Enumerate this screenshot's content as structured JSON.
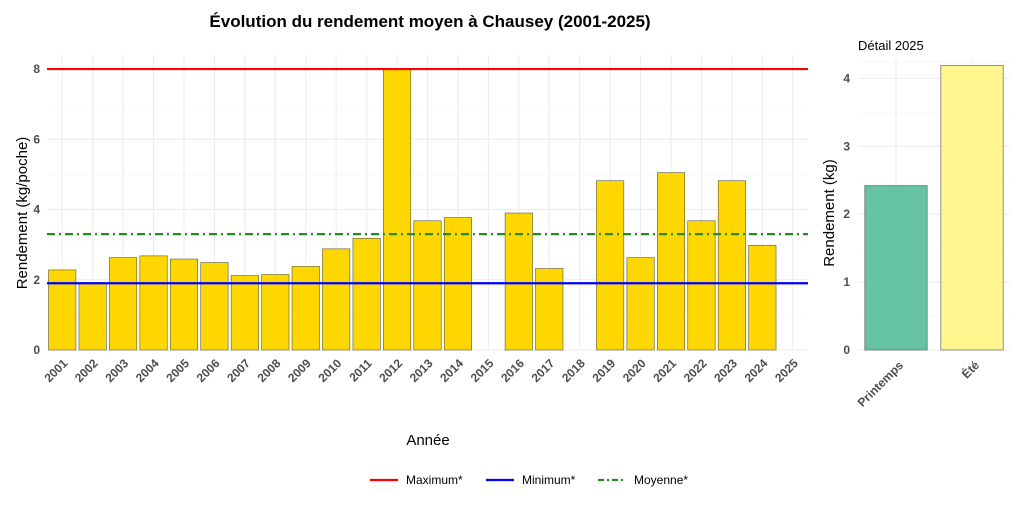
{
  "chart_data": [
    {
      "type": "bar",
      "title": "Évolution du rendement moyen à Chausey (2001-2025)",
      "xlabel": "Année",
      "ylabel": "Rendement (kg/poche)",
      "ylim": [
        0,
        8.4
      ],
      "yticks": [
        0,
        2,
        4,
        6,
        8
      ],
      "grid": true,
      "bar_color": "#FFD700",
      "categories": [
        "2001",
        "2002",
        "2003",
        "2004",
        "2005",
        "2006",
        "2007",
        "2008",
        "2009",
        "2010",
        "2011",
        "2012",
        "2013",
        "2014",
        "2015",
        "2016",
        "2017",
        "2018",
        "2019",
        "2020",
        "2021",
        "2022",
        "2023",
        "2024",
        "2025"
      ],
      "values": [
        2.28,
        1.9,
        2.63,
        2.68,
        2.59,
        2.49,
        2.12,
        2.15,
        2.38,
        2.88,
        3.18,
        8.0,
        3.68,
        3.77,
        null,
        3.9,
        2.32,
        null,
        4.82,
        2.63,
        5.05,
        3.68,
        4.82,
        2.98,
        null
      ],
      "reference_lines": [
        {
          "name": "Maximum*",
          "value": 8.0,
          "color": "#FF0000",
          "style": "solid"
        },
        {
          "name": "Minimum*",
          "value": 1.9,
          "color": "#0000FF",
          "style": "solid"
        },
        {
          "name": "Moyenne*",
          "value": 3.3,
          "color": "#228B22",
          "style": "dashdot"
        }
      ],
      "legend_position": "bottom"
    },
    {
      "type": "bar",
      "title": "Détail 2025",
      "xlabel": "",
      "ylabel": "Rendement (kg)",
      "ylim": [
        0,
        4.3
      ],
      "yticks": [
        0,
        1,
        2,
        3,
        4
      ],
      "grid": true,
      "categories": [
        "Printemps",
        "Été"
      ],
      "values": [
        2.42,
        4.19
      ],
      "colors": [
        "#66C2A5",
        "#FFF68F"
      ]
    }
  ]
}
